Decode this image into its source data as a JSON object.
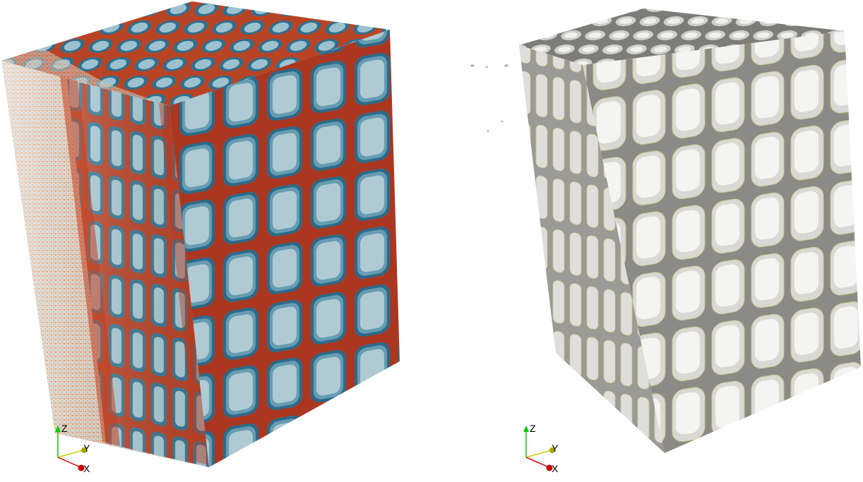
{
  "panels": [
    {
      "id": "left",
      "content": "volume-slice-rendering",
      "colormap": {
        "low": "#2f6f8f",
        "mid": "#e8e2d6",
        "high": "#b8321e"
      },
      "axes": {
        "z": "Z",
        "y": "Y",
        "x": "X"
      }
    },
    {
      "id": "right",
      "content": "isosurface-rendering",
      "surface_color": "#e4e4e0",
      "edge_color": "#c9c98a",
      "axes": {
        "z": "Z",
        "y": "Y",
        "x": "X"
      }
    }
  ],
  "axis_colors": {
    "z": "#00cc00",
    "y": "#cccc00",
    "x": "#cc0000"
  }
}
